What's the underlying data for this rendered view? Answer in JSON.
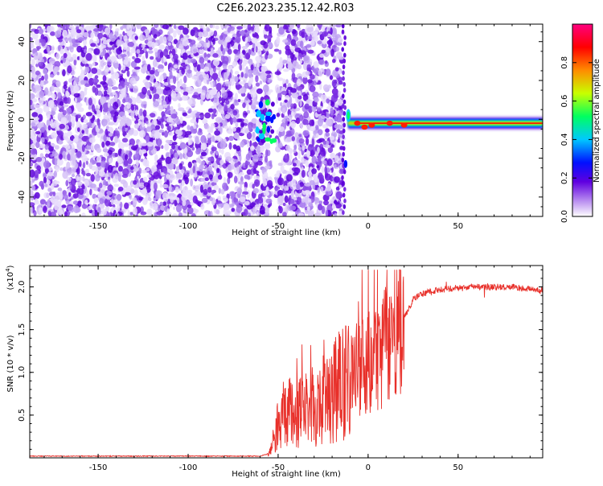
{
  "figure": {
    "title": "C2E6.2023.235.12.42.R03"
  },
  "chart_data": [
    {
      "type": "heatmap",
      "xlabel": "Height of straight line (km)",
      "ylabel": "Frequency (Hz)",
      "xlim": [
        -188,
        97
      ],
      "ylim": [
        -50,
        49
      ],
      "xticks": [
        -150,
        -100,
        -50,
        0,
        50
      ],
      "yticks": [
        -40,
        -20,
        0,
        20,
        40
      ],
      "colorbar": {
        "label": "Normalized spectral amplitude",
        "range": [
          0,
          1
        ],
        "ticks": [
          0.0,
          0.2,
          0.4,
          0.6,
          0.8
        ],
        "colors": [
          "#ffffff",
          "#b98ef0",
          "#6000e0",
          "#0010ff",
          "#00c8ff",
          "#00ff60",
          "#c8ff00",
          "#ff8c00",
          "#ff0000",
          "#ff0080"
        ]
      },
      "regions": [
        {
          "x": [
            -188,
            -54
          ],
          "kind": "noise"
        },
        {
          "x": [
            -53,
            -43
          ],
          "kind": "empty"
        },
        {
          "x": [
            -51,
            -14
          ],
          "kind": "noise"
        },
        {
          "x": [
            -14,
            97
          ],
          "kind": "signal",
          "frequency": -2
        }
      ]
    },
    {
      "type": "line",
      "xlabel": "Height of straight line (km)",
      "ylabel": "SNR (10 * v/v)",
      "yscale_label": "(x10",
      "yscale_exp": "4",
      "yscale_close": ")",
      "xlim": [
        -188,
        97
      ],
      "ylim": [
        0,
        2.25
      ],
      "xticks": [
        -150,
        -100,
        -50,
        0,
        50
      ],
      "yticks": [
        0.5,
        1.0,
        1.5,
        2.0
      ],
      "color": "#e8302a",
      "profile": [
        [
          -188,
          0.02
        ],
        [
          -60,
          0.02
        ],
        [
          -55,
          0.05
        ],
        [
          -52,
          0.25
        ],
        [
          -48,
          0.55
        ],
        [
          -40,
          0.5
        ],
        [
          -30,
          0.6
        ],
        [
          -20,
          0.75
        ],
        [
          -10,
          0.95
        ],
        [
          -5,
          1.05
        ],
        [
          0,
          1.1
        ],
        [
          5,
          1.15
        ],
        [
          10,
          1.3
        ],
        [
          15,
          1.5
        ],
        [
          20,
          1.65
        ],
        [
          25,
          1.85
        ],
        [
          30,
          1.92
        ],
        [
          40,
          1.97
        ],
        [
          60,
          2.0
        ],
        [
          80,
          2.0
        ],
        [
          97,
          1.95
        ]
      ]
    }
  ]
}
